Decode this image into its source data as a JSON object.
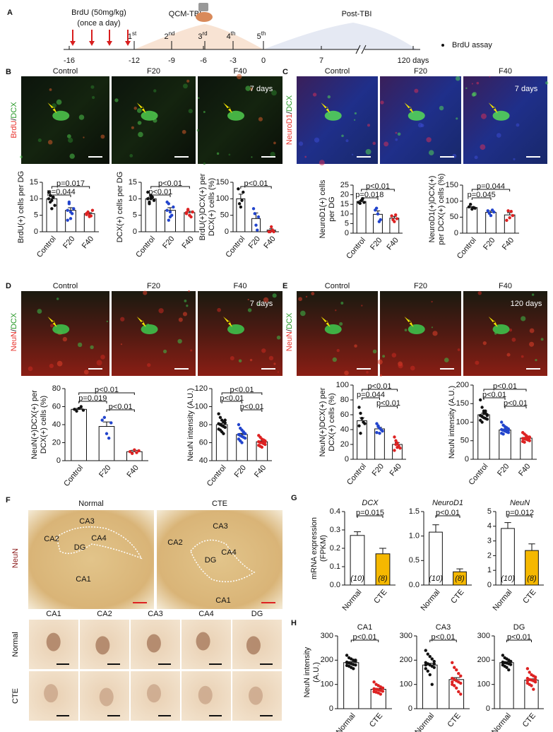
{
  "letters": [
    "A",
    "B",
    "C",
    "D",
    "E",
    "F",
    "G",
    "H"
  ],
  "timeline": {
    "brdu": [
      "BrdU (50mg/kg)",
      "(once a day)"
    ],
    "qcm": "QCM-TBI",
    "post": "Post-TBI",
    "assay": "BrdU assay",
    "sessions": [
      [
        "1",
        "st"
      ],
      [
        "2",
        "nd"
      ],
      [
        "3",
        "rd"
      ],
      [
        "4",
        "th"
      ],
      [
        "5",
        "th"
      ]
    ],
    "ticks": [
      "-16",
      "-12",
      "-9",
      "-6",
      "-3",
      "0",
      "7",
      "120 days"
    ]
  },
  "panel_b": {
    "stain": [
      "BrdU",
      "/",
      "DCX"
    ],
    "stain_colors": [
      "#e8302a",
      "#111111",
      "#2a9a2a"
    ],
    "columns": [
      "Control",
      "F20",
      "F40"
    ],
    "days": "7 days"
  },
  "panel_c": {
    "stain": [
      "NeuroD1",
      "/",
      "DCX"
    ],
    "stain_colors": [
      "#e8302a",
      "#111111",
      "#2a9a2a"
    ],
    "columns": [
      "Control",
      "F20",
      "F40"
    ],
    "days": "7 days"
  },
  "panel_d": {
    "stain": [
      "NeuN",
      "/",
      "DCX"
    ],
    "stain_colors": [
      "#e8302a",
      "#111111",
      "#2a9a2a"
    ],
    "columns": [
      "Control",
      "F20",
      "F40"
    ],
    "days": "7 days"
  },
  "panel_e": {
    "stain": [
      "NeuN",
      "/",
      "DCX"
    ],
    "stain_colors": [
      "#e8302a",
      "#111111",
      "#2a9a2a"
    ],
    "columns": [
      "Control",
      "F20",
      "F40"
    ],
    "days": "120 days"
  },
  "panel_f": {
    "stain": "NeuN",
    "stain_color": "#8b1a1a",
    "images": [
      {
        "label": "Normal",
        "regions": [
          "CA3",
          "CA2",
          "CA4",
          "DG",
          "CA1"
        ]
      },
      {
        "label": "CTE",
        "regions": [
          "CA3",
          "CA2",
          "CA4",
          "DG",
          "CA1"
        ]
      }
    ],
    "zoom_columns": [
      "CA1",
      "CA2",
      "CA3",
      "CA4",
      "DG"
    ],
    "zoom_rows": [
      "Normal",
      "CTE"
    ]
  },
  "chart_data": [
    {
      "type": "bar",
      "ylabel": [
        "BrdU(+) cells per DG"
      ],
      "categories": [
        "Control",
        "F20",
        "F40"
      ],
      "values": [
        10,
        6.5,
        5.5
      ],
      "errors": [
        0.8,
        0.8,
        0.3
      ],
      "points": [
        [
          10,
          11,
          9.5,
          10.5,
          8,
          12,
          9,
          7
        ],
        [
          6.5,
          8.5,
          4,
          5.5,
          7,
          3.5,
          9,
          6
        ],
        [
          5.5,
          6,
          5,
          4.8,
          6.5,
          5.2,
          5.8,
          4.6
        ]
      ],
      "fills": [
        "#ffffff",
        "#ffffff",
        "#ffffff"
      ],
      "colors": [
        "#111111",
        "#2244cc",
        "#dd2222"
      ],
      "ylim": [
        0,
        15
      ],
      "yticks": [
        0,
        5,
        10,
        15
      ],
      "pvalues": [
        {
          "label": "p=0.017",
          "pair": [
            0,
            2
          ]
        },
        {
          "label": "p=0.044",
          "pair": [
            0,
            1
          ]
        }
      ]
    },
    {
      "type": "bar",
      "ylabel": [
        "DCX(+) cells per DG"
      ],
      "categories": [
        "Control",
        "F20",
        "F40"
      ],
      "values": [
        10,
        6.5,
        5.8
      ],
      "errors": [
        0.5,
        0.8,
        0.4
      ],
      "points": [
        [
          10,
          9,
          11,
          10.5,
          9.5,
          12,
          8.5,
          10
        ],
        [
          6.5,
          8.5,
          4.5,
          5,
          7.5,
          9,
          3.5,
          6
        ],
        [
          5.5,
          6.8,
          5,
          4.5,
          6,
          5.8,
          6.5
        ]
      ],
      "fills": [
        "#ffffff",
        "#ffffff",
        "#ffffff"
      ],
      "colors": [
        "#111111",
        "#2244cc",
        "#dd2222"
      ],
      "ylim": [
        0,
        15
      ],
      "yticks": [
        0,
        5,
        10,
        15
      ],
      "pvalues": [
        {
          "label": "p<0.01",
          "pair": [
            0,
            2
          ]
        },
        {
          "label": "p<0.01",
          "pair": [
            0,
            1
          ]
        }
      ]
    },
    {
      "type": "bar",
      "ylabel": [
        "BrdU(+)DCX(+) per",
        "DCX(+) cells (%)"
      ],
      "categories": [
        "Control",
        "F20",
        "F40"
      ],
      "values": [
        100,
        40,
        5
      ],
      "errors": [
        14,
        17,
        4
      ],
      "points": [
        [
          130,
          85,
          75,
          95,
          120
        ],
        [
          70,
          55,
          20,
          5,
          45
        ],
        [
          0,
          0,
          15,
          5,
          0
        ]
      ],
      "fills": [
        "#ffffff",
        "#ffffff",
        "#ffffff"
      ],
      "colors": [
        "#111111",
        "#2244cc",
        "#dd2222"
      ],
      "ylim": [
        0,
        150
      ],
      "yticks": [
        0,
        50,
        100,
        150
      ],
      "pvalues": [
        {
          "label": "p<0.01",
          "pair": [
            0,
            2
          ]
        }
      ]
    },
    {
      "type": "bar",
      "ylabel": [
        "NeuroD1(+) cells",
        "per DG"
      ],
      "categories": [
        "Control",
        "F20",
        "F40"
      ],
      "values": [
        16.5,
        9.8,
        7.8
      ],
      "errors": [
        0.6,
        1.8,
        0.9
      ],
      "points": [
        [
          16,
          15.5,
          17,
          18,
          16
        ],
        [
          12,
          13,
          10,
          6,
          7
        ],
        [
          9,
          7,
          6,
          9.5,
          7.5
        ]
      ],
      "fills": [
        "#ffffff",
        "#ffffff",
        "#ffffff"
      ],
      "colors": [
        "#111111",
        "#2244cc",
        "#dd2222"
      ],
      "ylim": [
        0,
        25
      ],
      "yticks": [
        0,
        5,
        10,
        15,
        20,
        25
      ],
      "pvalues": [
        {
          "label": "p<0.01",
          "pair": [
            0,
            2
          ]
        },
        {
          "label": "p=0.018",
          "pair": [
            0,
            1
          ]
        }
      ]
    },
    {
      "type": "bar",
      "ylabel": [
        "NeuroD1(+)DCX(+)",
        "per DCX(+) cells (%)"
      ],
      "categories": [
        "Control",
        "F20",
        "F40"
      ],
      "values": [
        80,
        65,
        57
      ],
      "errors": [
        3,
        4,
        7
      ],
      "points": [
        [
          82,
          90,
          75,
          80,
          78
        ],
        [
          70,
          62,
          55,
          72,
          66
        ],
        [
          40,
          70,
          48,
          68,
          55
        ]
      ],
      "fills": [
        "#ffffff",
        "#ffffff",
        "#ffffff"
      ],
      "colors": [
        "#111111",
        "#2244cc",
        "#dd2222"
      ],
      "ylim": [
        0,
        150
      ],
      "yticks": [
        0,
        50,
        100,
        150
      ],
      "pvalues": [
        {
          "label": "p=0.044",
          "pair": [
            0,
            2
          ]
        },
        {
          "label": "p=0.045",
          "pair": [
            0,
            1
          ]
        }
      ]
    },
    {
      "type": "bar",
      "ylabel": [
        "NeuN(+)DCX(+) per",
        "DCX(+) cells (%)"
      ],
      "categories": [
        "Control",
        "F20",
        "F40"
      ],
      "values": [
        57,
        38,
        10
      ],
      "errors": [
        1,
        5,
        1.5
      ],
      "points": [
        [
          57,
          55,
          58,
          60,
          56
        ],
        [
          45,
          48,
          30,
          25,
          42
        ],
        [
          10,
          8,
          12,
          9,
          11
        ]
      ],
      "fills": [
        "#ffffff",
        "#ffffff",
        "#ffffff"
      ],
      "colors": [
        "#111111",
        "#2244cc",
        "#dd2222"
      ],
      "ylim": [
        0,
        80
      ],
      "yticks": [
        0,
        20,
        40,
        60,
        80
      ],
      "pvalues": [
        {
          "label": "p<0.01",
          "pair": [
            0,
            2
          ]
        },
        {
          "label": "p=0.019",
          "pair": [
            0,
            1
          ]
        },
        {
          "label": "p<0.01",
          "pair": [
            1,
            2
          ]
        }
      ]
    },
    {
      "type": "bar",
      "ylabel": [
        "NeuN intensity (A.U.)"
      ],
      "categories": [
        "Control",
        "F20",
        "F40"
      ],
      "values": [
        80,
        69,
        61
      ],
      "errors": [
        1.6,
        1.3,
        0.9
      ],
      "points": [
        [
          92,
          88,
          85,
          83,
          82,
          81,
          80,
          79,
          78,
          77,
          75,
          74,
          72,
          70,
          85
        ],
        [
          80,
          76,
          74,
          72,
          70,
          69,
          68,
          67,
          66,
          65,
          64,
          62,
          60,
          71,
          70
        ],
        [
          68,
          66,
          64,
          63,
          62,
          61,
          60,
          60,
          59,
          58,
          57,
          56,
          55,
          63,
          61
        ]
      ],
      "fills": [
        "#ffffff",
        "#ffffff",
        "#ffffff"
      ],
      "colors": [
        "#111111",
        "#2244cc",
        "#dd2222"
      ],
      "ylim": [
        40,
        120
      ],
      "yticks": [
        40,
        60,
        80,
        100,
        120
      ],
      "pvalues": [
        {
          "label": "p<0.01",
          "pair": [
            0,
            2
          ]
        },
        {
          "label": "p<0.01",
          "pair": [
            0,
            1
          ]
        },
        {
          "label": "p<0.01",
          "pair": [
            1,
            2
          ]
        }
      ]
    },
    {
      "type": "bar",
      "ylabel": [
        "NeuN(+)DCX(+) per",
        "DCX(+) cells (%)"
      ],
      "categories": [
        "Control",
        "F20",
        "F40"
      ],
      "values": [
        52,
        41,
        20
      ],
      "errors": [
        4,
        2,
        2.5
      ],
      "points": [
        [
          70,
          62,
          55,
          50,
          48,
          45,
          35,
          55
        ],
        [
          48,
          45,
          42,
          40,
          38,
          36,
          44,
          35
        ],
        [
          30,
          25,
          22,
          18,
          15,
          12,
          20,
          16
        ]
      ],
      "fills": [
        "#ffffff",
        "#ffffff",
        "#ffffff"
      ],
      "colors": [
        "#111111",
        "#2244cc",
        "#dd2222"
      ],
      "ylim": [
        0,
        100
      ],
      "yticks": [
        0,
        20,
        40,
        60,
        80,
        100
      ],
      "pvalues": [
        {
          "label": "p<0.01",
          "pair": [
            0,
            2
          ]
        },
        {
          "label": "p=0.044",
          "pair": [
            0,
            1
          ]
        },
        {
          "label": "p<0.01",
          "pair": [
            1,
            2
          ]
        }
      ]
    },
    {
      "type": "bar",
      "ylabel": [
        "NeuN intensity (A.U.)"
      ],
      "categories": [
        "Control",
        "F20",
        "F40"
      ],
      "values": [
        120,
        79,
        57
      ],
      "errors": [
        4,
        2.5,
        2
      ],
      "points": [
        [
          160,
          140,
          130,
          125,
          120,
          118,
          115,
          112,
          110,
          108,
          105,
          100,
          125,
          130,
          118
        ],
        [
          100,
          92,
          88,
          85,
          82,
          80,
          78,
          76,
          75,
          72,
          70,
          68,
          80,
          74,
          78
        ],
        [
          72,
          68,
          64,
          60,
          58,
          56,
          55,
          54,
          52,
          50,
          48,
          46,
          58,
          56,
          60
        ]
      ],
      "fills": [
        "#ffffff",
        "#ffffff",
        "#ffffff"
      ],
      "colors": [
        "#111111",
        "#2244cc",
        "#dd2222"
      ],
      "ylim": [
        0,
        200
      ],
      "yticks": [
        0,
        50,
        100,
        150,
        200
      ],
      "pvalues": [
        {
          "label": "p<0.01",
          "pair": [
            0,
            2
          ]
        },
        {
          "label": "p<0.01",
          "pair": [
            0,
            1
          ]
        },
        {
          "label": "p<0.01",
          "pair": [
            1,
            2
          ]
        }
      ]
    },
    {
      "type": "bar",
      "title": "DCX",
      "title_style": "italic",
      "ylabel": [
        "mRNA expression",
        "(FPKM)"
      ],
      "categories": [
        "Normal",
        "CTE"
      ],
      "values": [
        0.27,
        0.17
      ],
      "errors": [
        0.02,
        0.03
      ],
      "n_labels": [
        "(10)",
        "(8)"
      ],
      "fills": [
        "#ffffff",
        "#f5b800"
      ],
      "ylim": [
        0,
        0.4
      ],
      "yticks": [
        {
          "value": 0,
          "label": "0.0"
        },
        0.1,
        0.2,
        0.3,
        0.4
      ],
      "pvalues": [
        {
          "label": "p=0.015",
          "pair": [
            0,
            1
          ]
        }
      ]
    },
    {
      "type": "bar",
      "title": "NeuroD1",
      "title_style": "italic",
      "categories": [
        "Normal",
        "CTE"
      ],
      "values": [
        1.08,
        0.27
      ],
      "errors": [
        0.15,
        0.06
      ],
      "n_labels": [
        "(10)",
        "(8)"
      ],
      "fills": [
        "#ffffff",
        "#f5b800"
      ],
      "ylim": [
        0,
        1.5
      ],
      "yticks": [
        {
          "value": 0,
          "label": "0.0"
        },
        0.5,
        {
          "value": 1,
          "label": "1.0"
        },
        1.5
      ],
      "pvalues": [
        {
          "label": "p<0.01",
          "pair": [
            0,
            1
          ]
        }
      ]
    },
    {
      "type": "bar",
      "title": "NeuN",
      "title_style": "italic",
      "categories": [
        "Normal",
        "CTE"
      ],
      "values": [
        3.85,
        2.35
      ],
      "errors": [
        0.4,
        0.45
      ],
      "n_labels": [
        "(10)",
        "(8)"
      ],
      "fills": [
        "#ffffff",
        "#f5b800"
      ],
      "ylim": [
        0,
        5
      ],
      "yticks": [
        0,
        1,
        2,
        3,
        4,
        5
      ],
      "pvalues": [
        {
          "label": "p=0.012",
          "pair": [
            0,
            1
          ]
        }
      ]
    },
    {
      "type": "bar",
      "title": "CA1",
      "title_style": "normal",
      "ylabel": [
        "NeuN intensity",
        "(A.U.)"
      ],
      "categories": [
        "Normal",
        "CTE"
      ],
      "values": [
        190,
        80
      ],
      "errors": [
        4,
        3.5
      ],
      "points": [
        [
          220,
          210,
          205,
          200,
          195,
          190,
          188,
          185,
          182,
          180,
          178,
          175,
          170,
          165,
          200,
          192
        ],
        [
          110,
          100,
          95,
          90,
          85,
          82,
          80,
          78,
          75,
          72,
          70,
          68,
          65,
          60,
          85,
          80
        ]
      ],
      "fills": [
        "#ffffff",
        "#ffffff"
      ],
      "colors": [
        "#111111",
        "#dd2222"
      ],
      "ylim": [
        0,
        300
      ],
      "yticks": [
        0,
        100,
        200,
        300
      ],
      "pvalues": [
        {
          "label": "p<0.01",
          "pair": [
            0,
            1
          ]
        }
      ]
    },
    {
      "type": "bar",
      "title": "CA3",
      "title_style": "normal",
      "categories": [
        "Normal",
        "CTE"
      ],
      "values": [
        180,
        120
      ],
      "errors": [
        7,
        8
      ],
      "points": [
        [
          240,
          225,
          215,
          205,
          195,
          190,
          185,
          180,
          175,
          170,
          165,
          155,
          140,
          100,
          185,
          180
        ],
        [
          190,
          170,
          160,
          145,
          135,
          125,
          120,
          115,
          110,
          105,
          100,
          95,
          85,
          70,
          60,
          110
        ]
      ],
      "fills": [
        "#ffffff",
        "#ffffff"
      ],
      "colors": [
        "#111111",
        "#dd2222"
      ],
      "ylim": [
        0,
        300
      ],
      "yticks": [
        0,
        100,
        200,
        300
      ],
      "pvalues": [
        {
          "label": "p<0.01",
          "pair": [
            0,
            1
          ]
        }
      ]
    },
    {
      "type": "bar",
      "title": "DG",
      "title_style": "normal",
      "categories": [
        "Normal",
        "CTE"
      ],
      "values": [
        190,
        118
      ],
      "errors": [
        3.5,
        5
      ],
      "points": [
        [
          220,
          210,
          205,
          200,
          195,
          192,
          190,
          188,
          185,
          182,
          180,
          175,
          170,
          160,
          195,
          190
        ],
        [
          165,
          150,
          140,
          135,
          130,
          125,
          120,
          118,
          115,
          110,
          105,
          100,
          95,
          80,
          120,
          115
        ]
      ],
      "fills": [
        "#ffffff",
        "#ffffff"
      ],
      "colors": [
        "#111111",
        "#dd2222"
      ],
      "ylim": [
        0,
        300
      ],
      "yticks": [
        0,
        100,
        200,
        300
      ],
      "pvalues": [
        {
          "label": "p<0.01",
          "pair": [
            0,
            1
          ]
        }
      ]
    }
  ]
}
